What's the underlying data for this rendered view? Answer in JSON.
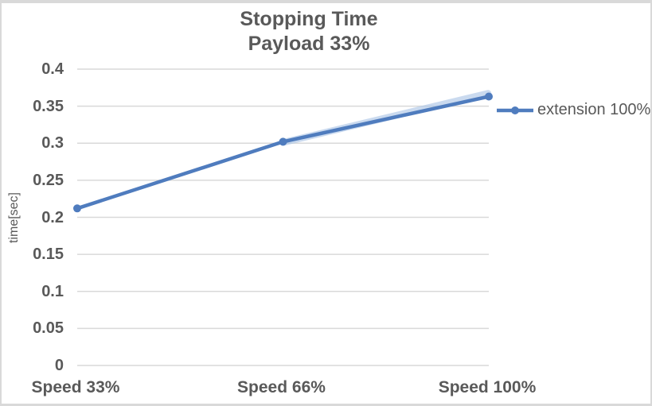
{
  "chart_data": {
    "type": "line",
    "title": "Stopping Time",
    "subtitle": "Payload 33%",
    "categories": [
      "Speed 33%",
      "Speed 66%",
      "Speed 100%"
    ],
    "series": [
      {
        "name": "extension 100%",
        "values": [
          0.212,
          0.302,
          0.363
        ],
        "color": "#4f7cbe",
        "marker": "circle",
        "line_width": 4.5,
        "marker_radius": 5
      }
    ],
    "xlabel": "",
    "ylabel": "time[sec]",
    "ylim": [
      0,
      0.4
    ],
    "ytick_step": 0.05,
    "ytick_labels": [
      "0",
      "0.05",
      "0.1",
      "0.15",
      "0.2",
      "0.25",
      "0.3",
      "0.35",
      "0.4"
    ],
    "grid": "horizontal",
    "gridline_color": "#d9d9d9",
    "legend_position": "center-right",
    "legend_entries": [
      "extension 100%"
    ],
    "text_color": "#595959",
    "line_glow": {
      "color": "#aec7e8",
      "segment_categories": [
        "Speed 66%",
        "Speed 100%"
      ],
      "description": "soft light-blue halo around the last line segment"
    }
  }
}
